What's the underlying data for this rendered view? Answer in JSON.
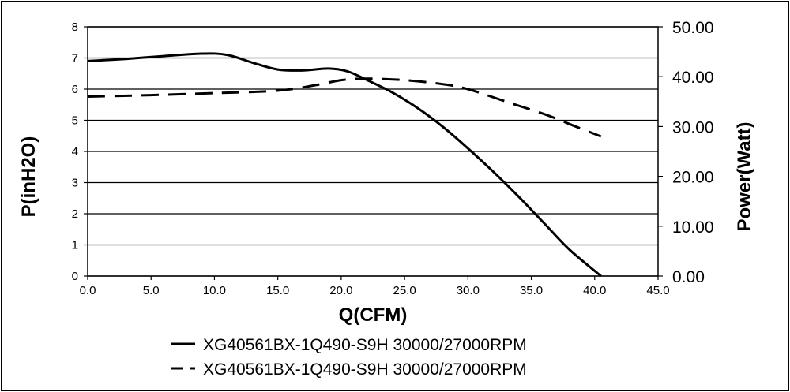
{
  "chart_data": {
    "type": "line",
    "xlabel": "Q(CFM)",
    "ylabel": "P(inH2O)",
    "y2label": "Power(Watt)",
    "xlim": [
      0,
      45
    ],
    "ylim": [
      0,
      8
    ],
    "y2lim": [
      0,
      50
    ],
    "xticks": [
      "0.0",
      "5.0",
      "10.0",
      "15.0",
      "20.0",
      "25.0",
      "30.0",
      "35.0",
      "40.0",
      "45.0"
    ],
    "yticks": [
      "0",
      "1",
      "2",
      "3",
      "4",
      "5",
      "6",
      "7",
      "8"
    ],
    "y2ticks": [
      "0.00",
      "10.00",
      "20.00",
      "30.00",
      "40.00",
      "50.00"
    ],
    "grid": "horizontal",
    "legend_position": "bottom",
    "series": [
      {
        "name": "XG40561BX-1Q490-S9H 30000/27000RPM",
        "axis": "left",
        "style": "solid",
        "color": "#000000",
        "x": [
          0,
          3,
          6,
          9,
          11,
          13,
          15,
          17,
          19,
          20.5,
          22,
          24,
          26,
          28,
          30,
          32,
          34,
          36,
          38,
          40.5
        ],
        "y": [
          6.9,
          6.97,
          7.06,
          7.14,
          7.1,
          6.85,
          6.63,
          6.6,
          6.66,
          6.57,
          6.3,
          5.9,
          5.4,
          4.8,
          4.1,
          3.35,
          2.55,
          1.7,
          0.85,
          0.0
        ]
      },
      {
        "name": "XG40561BX-1Q490-S9H 30000/27000RPM",
        "axis": "right",
        "style": "dashed",
        "color": "#000000",
        "x": [
          0,
          5,
          10,
          15,
          18,
          20,
          22,
          25,
          28,
          30,
          33,
          36,
          38,
          40.5
        ],
        "y": [
          36.0,
          36.3,
          36.7,
          37.2,
          38.3,
          39.3,
          39.6,
          39.3,
          38.5,
          37.5,
          35.0,
          32.5,
          30.5,
          28.0
        ]
      }
    ]
  }
}
